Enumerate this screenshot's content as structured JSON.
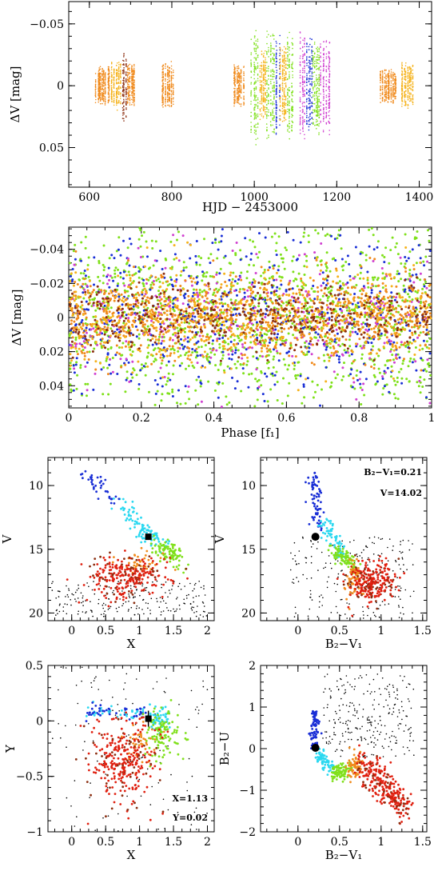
{
  "colors": {
    "orange": "#f08a1c",
    "gold": "#f5b21a",
    "brown": "#8b2e10",
    "green": "#7fe01a",
    "blue": "#1a2fd6",
    "cyan": "#2ad8f0",
    "magenta": "#d040d0",
    "red": "#e02010",
    "black": "#000000"
  },
  "chart_data": [
    {
      "id": "lightcurve",
      "type": "scatter",
      "xlabel": "HJD − 2453000",
      "ylabel": "ΔV [mag]",
      "xlim": [
        550,
        1430
      ],
      "ylim": [
        0.082,
        -0.068
      ],
      "xticks": [
        600,
        800,
        1000,
        1200,
        1400
      ],
      "xtick_labels": [
        "600",
        "800",
        "1000",
        "1200",
        "1400"
      ],
      "yticks": [
        -0.05,
        0,
        0.05
      ],
      "ytick_labels": [
        "−0.05",
        "0",
        "0.05"
      ],
      "observing_runs": [
        {
          "x": [
            615,
            650
          ],
          "color": "orange",
          "spread": 0.016
        },
        {
          "x": [
            650,
            678
          ],
          "color": "gold",
          "spread": 0.02
        },
        {
          "x": [
            678,
            690
          ],
          "color": "brown",
          "spread": 0.03
        },
        {
          "x": [
            690,
            712
          ],
          "color": "orange",
          "spread": 0.018
        },
        {
          "x": [
            775,
            805
          ],
          "color": "orange",
          "spread": 0.02
        },
        {
          "x": [
            948,
            975
          ],
          "color": "orange",
          "spread": 0.018
        },
        {
          "x": [
            992,
            1012
          ],
          "color": "green",
          "spread": 0.05
        },
        {
          "x": [
            1012,
            1030
          ],
          "color": "gold",
          "spread": 0.03
        },
        {
          "x": [
            1030,
            1050
          ],
          "color": "green",
          "spread": 0.045
        },
        {
          "x": [
            1050,
            1062
          ],
          "color": "blue",
          "spread": 0.045
        },
        {
          "x": [
            1062,
            1080
          ],
          "color": "gold",
          "spread": 0.035
        },
        {
          "x": [
            1080,
            1095
          ],
          "color": "green",
          "spread": 0.045
        },
        {
          "x": [
            1110,
            1125
          ],
          "color": "magenta",
          "spread": 0.045
        },
        {
          "x": [
            1125,
            1140
          ],
          "color": "blue",
          "spread": 0.04
        },
        {
          "x": [
            1140,
            1160
          ],
          "color": "green",
          "spread": 0.04
        },
        {
          "x": [
            1160,
            1185
          ],
          "color": "magenta",
          "spread": 0.04
        },
        {
          "x": [
            1305,
            1345
          ],
          "color": "orange",
          "spread": 0.015
        },
        {
          "x": [
            1355,
            1385
          ],
          "color": "gold",
          "spread": 0.02
        }
      ]
    },
    {
      "id": "phased",
      "type": "scatter",
      "xlabel": "Phase [f₁]",
      "ylabel": "ΔV [mag]",
      "xlim": [
        0,
        1
      ],
      "ylim": [
        0.053,
        -0.053
      ],
      "xticks": [
        0,
        0.2,
        0.4,
        0.6,
        0.8,
        1
      ],
      "xtick_labels": [
        "0",
        "0.2",
        "0.4",
        "0.6",
        "0.8",
        "1"
      ],
      "yticks": [
        -0.04,
        -0.02,
        0,
        0.02,
        0.04
      ],
      "ytick_labels": [
        "−0.04",
        "−0.02",
        "0",
        "0.02",
        "0.04"
      ],
      "series_colors": [
        "green",
        "blue",
        "magenta",
        "orange",
        "gold",
        "brown"
      ]
    },
    {
      "id": "cmd-v-x",
      "type": "scatter",
      "xlabel": "X",
      "ylabel": "V",
      "xlim": [
        -0.35,
        2.1
      ],
      "ylim": [
        20.6,
        7.8
      ],
      "xticks": [
        0,
        0.5,
        1,
        1.5,
        2
      ],
      "xtick_labels": [
        "0",
        "0.5",
        "1",
        "1.5",
        "2"
      ],
      "yticks": [
        10,
        15,
        20
      ],
      "ytick_labels": [
        "10",
        "15",
        "20"
      ],
      "target": {
        "x": 1.13,
        "y": 14.02,
        "marker": "square"
      }
    },
    {
      "id": "cmd-v-bv",
      "type": "scatter",
      "xlabel": "B₂−V₁",
      "ylabel": "V",
      "xlim": [
        -0.45,
        1.55
      ],
      "ylim": [
        20.6,
        7.8
      ],
      "xticks": [
        0,
        0.5,
        1,
        1.5
      ],
      "xtick_labels": [
        "0",
        "0.5",
        "1",
        "1.5"
      ],
      "yticks": [
        10,
        15,
        20
      ],
      "ytick_labels": [
        "10",
        "15",
        "20"
      ],
      "annotations": [
        "B₂−V₁=0.21",
        "V=14.02"
      ],
      "target": {
        "x": 0.21,
        "y": 14.02,
        "marker": "circle"
      }
    },
    {
      "id": "ccd-y-x",
      "type": "scatter",
      "xlabel": "X",
      "ylabel": "Y",
      "xlim": [
        -0.35,
        2.1
      ],
      "ylim": [
        -1,
        0.5
      ],
      "xticks": [
        0,
        0.5,
        1,
        1.5,
        2
      ],
      "xtick_labels": [
        "0",
        "0.5",
        "1",
        "1.5",
        "2"
      ],
      "yticks": [
        0.5,
        0,
        -0.5,
        -1
      ],
      "ytick_labels": [
        "0.5",
        "0",
        "−0.5",
        "−1"
      ],
      "annotations": [
        "X=1.13",
        "Y=0.02"
      ],
      "target": {
        "x": 1.13,
        "y": 0.02,
        "marker": "square"
      }
    },
    {
      "id": "ccd-bu-bv",
      "type": "scatter",
      "xlabel": "B₂−V₁",
      "ylabel": "B₂−U",
      "xlim": [
        -0.45,
        1.55
      ],
      "ylim": [
        -2,
        2
      ],
      "xticks": [
        0,
        0.5,
        1,
        1.5
      ],
      "xtick_labels": [
        "0",
        "0.5",
        "1",
        "1.5"
      ],
      "yticks": [
        2,
        1,
        0,
        -1,
        -2
      ],
      "ytick_labels": [
        "2",
        "1",
        "0",
        "−1",
        "−2"
      ],
      "target": {
        "x": 0.21,
        "y": 0.02,
        "marker": "circle"
      }
    }
  ]
}
